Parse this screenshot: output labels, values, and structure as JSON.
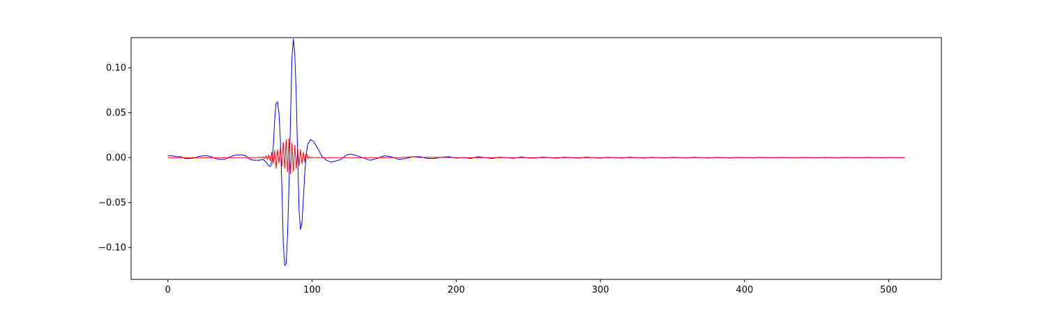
{
  "chart_data": {
    "type": "line",
    "title": "",
    "xlabel": "",
    "ylabel": "",
    "xlim": [
      -25.55,
      536.55
    ],
    "ylim": [
      -0.1355,
      0.1335
    ],
    "x_ticks": [
      0,
      100,
      200,
      300,
      400,
      500
    ],
    "x_tick_labels": [
      "0",
      "100",
      "200",
      "300",
      "400",
      "500"
    ],
    "y_ticks": [
      -0.1,
      -0.05,
      0.0,
      0.05,
      0.1
    ],
    "y_tick_labels": [
      "−0.10",
      "−0.05",
      "0.00",
      "0.05",
      "0.10"
    ],
    "grid": false,
    "legend": "none",
    "x_range": [
      0,
      511
    ],
    "series": [
      {
        "color": "#0000ff",
        "line_width": 1,
        "points": [
          [
            0,
            0.002
          ],
          [
            3,
            0.002
          ],
          [
            6,
            0.001
          ],
          [
            9,
            0.001
          ],
          [
            12,
            -0.001
          ],
          [
            15,
            -0.001
          ],
          [
            18,
            -0.0005
          ],
          [
            21,
            0.001
          ],
          [
            24,
            0.002
          ],
          [
            27,
            0.002
          ],
          [
            30,
            0.001
          ],
          [
            33,
            -0.001
          ],
          [
            36,
            -0.002
          ],
          [
            39,
            -0.002
          ],
          [
            42,
            0.0
          ],
          [
            45,
            0.002
          ],
          [
            48,
            0.003
          ],
          [
            51,
            0.003
          ],
          [
            54,
            0.002
          ],
          [
            57,
            -0.002
          ],
          [
            60,
            -0.003
          ],
          [
            63,
            -0.003
          ],
          [
            66,
            -0.002
          ],
          [
            68,
            -0.005
          ],
          [
            70,
            -0.009
          ],
          [
            71,
            -0.01
          ],
          [
            72,
            -0.005
          ],
          [
            73,
            0.01
          ],
          [
            74,
            0.04
          ],
          [
            75,
            0.06
          ],
          [
            76,
            0.062
          ],
          [
            77,
            0.05
          ],
          [
            78,
            0.02
          ],
          [
            79,
            -0.03
          ],
          [
            80,
            -0.095
          ],
          [
            81,
            -0.12
          ],
          [
            82,
            -0.118
          ],
          [
            83,
            -0.085
          ],
          [
            84,
            -0.03
          ],
          [
            85,
            0.04
          ],
          [
            86,
            0.11
          ],
          [
            87,
            0.132
          ],
          [
            88,
            0.115
          ],
          [
            89,
            0.07
          ],
          [
            90,
            0.0
          ],
          [
            91,
            -0.06
          ],
          [
            92,
            -0.08
          ],
          [
            93,
            -0.072
          ],
          [
            94,
            -0.045
          ],
          [
            95,
            -0.015
          ],
          [
            96,
            0.005
          ],
          [
            97,
            0.015
          ],
          [
            99,
            0.02
          ],
          [
            101,
            0.018
          ],
          [
            104,
            0.01
          ],
          [
            107,
            0.001
          ],
          [
            110,
            -0.003
          ],
          [
            113,
            -0.005
          ],
          [
            116,
            -0.004
          ],
          [
            120,
            -0.002
          ],
          [
            124,
            0.003
          ],
          [
            127,
            0.004
          ],
          [
            131,
            0.002
          ],
          [
            135,
            0.0
          ],
          [
            140,
            -0.003
          ],
          [
            145,
            -0.001
          ],
          [
            150,
            0.002
          ],
          [
            155,
            0.001
          ],
          [
            160,
            -0.002
          ],
          [
            165,
            -0.001
          ],
          [
            170,
            0.001
          ],
          [
            175,
            0.001
          ],
          [
            180,
            -0.001
          ],
          [
            185,
            -0.001
          ],
          [
            190,
            0.0005
          ],
          [
            195,
            0.001
          ],
          [
            200,
            -0.0005
          ],
          [
            205,
            0.0
          ],
          [
            210,
            -0.001
          ],
          [
            215,
            0.001
          ],
          [
            220,
            0.0
          ],
          [
            225,
            -0.001
          ],
          [
            230,
            0.0005
          ],
          [
            235,
            0.0
          ],
          [
            240,
            -0.0008
          ],
          [
            245,
            0.0008
          ],
          [
            250,
            -0.0005
          ],
          [
            255,
            -0.0005
          ],
          [
            260,
            0.0006
          ],
          [
            265,
            0.0
          ],
          [
            270,
            -0.0007
          ],
          [
            275,
            0.0005
          ],
          [
            280,
            0.0
          ],
          [
            285,
            -0.0006
          ],
          [
            290,
            0.0006
          ],
          [
            295,
            0.0
          ],
          [
            300,
            -0.0006
          ],
          [
            305,
            0.0004
          ],
          [
            310,
            0.0
          ],
          [
            315,
            -0.0005
          ],
          [
            320,
            0.0005
          ],
          [
            325,
            0.0
          ],
          [
            330,
            -0.0005
          ],
          [
            335,
            0.0004
          ],
          [
            340,
            0.0
          ],
          [
            345,
            -0.0004
          ],
          [
            350,
            0.0004
          ],
          [
            355,
            0.0
          ],
          [
            360,
            -0.0004
          ],
          [
            365,
            0.0004
          ],
          [
            370,
            0.0
          ],
          [
            375,
            -0.0004
          ],
          [
            380,
            0.0003
          ],
          [
            385,
            0.0
          ],
          [
            390,
            -0.0004
          ],
          [
            395,
            0.0003
          ],
          [
            400,
            0.0
          ],
          [
            405,
            -0.0003
          ],
          [
            410,
            0.0003
          ],
          [
            415,
            0.0
          ],
          [
            420,
            -0.0003
          ],
          [
            425,
            0.0003
          ],
          [
            430,
            0.0
          ],
          [
            435,
            -0.0003
          ],
          [
            440,
            0.0003
          ],
          [
            445,
            0.0
          ],
          [
            450,
            -0.0003
          ],
          [
            455,
            0.0003
          ],
          [
            460,
            0.0
          ],
          [
            465,
            -0.0003
          ],
          [
            470,
            0.0003
          ],
          [
            475,
            0.0
          ],
          [
            480,
            -0.0002
          ],
          [
            485,
            0.0003
          ],
          [
            490,
            0.0
          ],
          [
            495,
            -0.0002
          ],
          [
            500,
            0.0002
          ],
          [
            505,
            0.0
          ],
          [
            511,
            0.0
          ]
        ]
      },
      {
        "color": "#ff0000",
        "line_width": 1,
        "points": [
          [
            0,
            0.0
          ],
          [
            10,
            0.0
          ],
          [
            20,
            0.0
          ],
          [
            30,
            0.0
          ],
          [
            40,
            0.0
          ],
          [
            50,
            0.0
          ],
          [
            60,
            0.0
          ],
          [
            64,
            0.0005
          ],
          [
            65,
            -0.0005
          ],
          [
            66,
            0.001
          ],
          [
            67,
            -0.001
          ],
          [
            68,
            0.002
          ],
          [
            69,
            -0.002
          ],
          [
            70,
            0.003
          ],
          [
            71,
            -0.004
          ],
          [
            72,
            0.006
          ],
          [
            73,
            -0.007
          ],
          [
            74,
            0.008
          ],
          [
            75,
            -0.012
          ],
          [
            76,
            0.009
          ],
          [
            77,
            -0.006
          ],
          [
            78,
            0.012
          ],
          [
            79,
            -0.01
          ],
          [
            80,
            0.017
          ],
          [
            81,
            -0.012
          ],
          [
            82,
            0.02
          ],
          [
            83,
            -0.016
          ],
          [
            84,
            0.021
          ],
          [
            85,
            -0.018
          ],
          [
            86,
            0.016
          ],
          [
            87,
            -0.015
          ],
          [
            88,
            0.014
          ],
          [
            89,
            -0.012
          ],
          [
            90,
            0.01
          ],
          [
            91,
            -0.009
          ],
          [
            92,
            0.009
          ],
          [
            93,
            -0.007
          ],
          [
            94,
            0.006
          ],
          [
            95,
            -0.005
          ],
          [
            96,
            0.006
          ],
          [
            97,
            -0.001
          ],
          [
            98,
            0.001
          ],
          [
            99,
            -0.0005
          ],
          [
            100,
            0.0005
          ],
          [
            101,
            0.0
          ],
          [
            105,
            0.0
          ],
          [
            110,
            0.0
          ],
          [
            120,
            0.0
          ],
          [
            140,
            0.0
          ],
          [
            160,
            0.0
          ],
          [
            170,
            0.001
          ],
          [
            175,
            0.0
          ],
          [
            180,
            0.0005
          ],
          [
            200,
            0.0
          ],
          [
            250,
            0.0
          ],
          [
            300,
            0.0
          ],
          [
            350,
            0.0
          ],
          [
            400,
            0.0
          ],
          [
            450,
            0.0
          ],
          [
            500,
            0.0
          ],
          [
            511,
            0.0
          ]
        ]
      }
    ]
  }
}
